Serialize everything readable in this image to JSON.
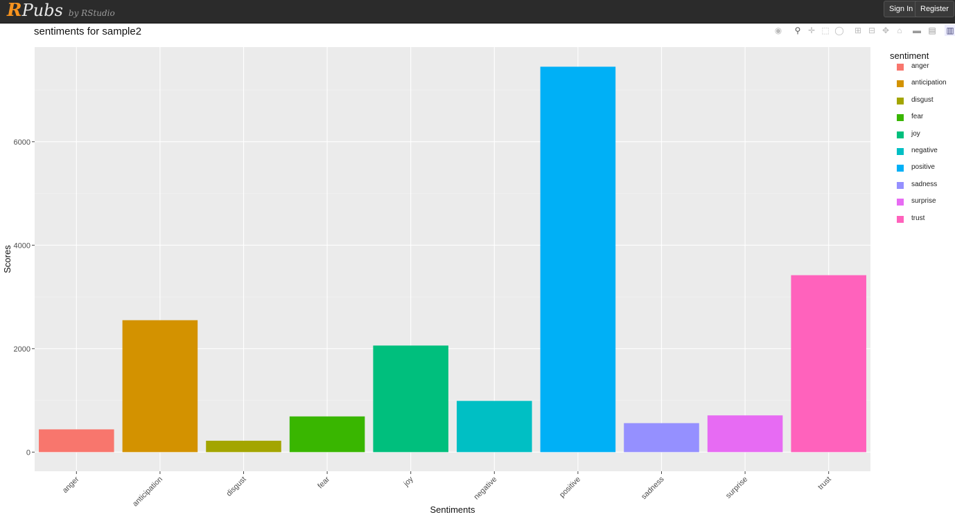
{
  "header": {
    "logo_r": "R",
    "logo_pubs": "Pubs",
    "logo_by": "by RStudio",
    "sign_in": "Sign In",
    "register": "Register"
  },
  "modebar_icons": [
    "camera-icon",
    "zoom-icon",
    "pan-icon",
    "box-select-icon",
    "lasso-icon",
    "zoom-in-icon",
    "zoom-out-icon",
    "autoscale-icon",
    "reset-axes-icon",
    "spike-lines-icon",
    "compare-hover-icon",
    "plotly-logo-icon"
  ],
  "colors": {
    "panel_bg": "#ebebeb",
    "grid": "#ffffff"
  },
  "chart_data": {
    "type": "bar",
    "title": "sentiments for sample2",
    "xlabel": "Sentiments",
    "ylabel": "Scores",
    "categories": [
      "anger",
      "anticipation",
      "disgust",
      "fear",
      "joy",
      "negative",
      "positive",
      "sadness",
      "surprise",
      "trust"
    ],
    "values": [
      440,
      2550,
      220,
      690,
      2060,
      990,
      7450,
      560,
      710,
      3420
    ],
    "colors": [
      "#F8766D",
      "#D39200",
      "#A3A500",
      "#39B600",
      "#00BF7D",
      "#00BFC4",
      "#00B0F6",
      "#9590FF",
      "#E76BF3",
      "#FF62BC"
    ],
    "yticks": [
      0,
      2000,
      4000,
      6000
    ],
    "ylim": [
      -370,
      7830
    ],
    "grid": true,
    "legend": {
      "title": "sentiment",
      "placement": "right",
      "entries": [
        "anger",
        "anticipation",
        "disgust",
        "fear",
        "joy",
        "negative",
        "positive",
        "sadness",
        "surprise",
        "trust"
      ]
    }
  }
}
